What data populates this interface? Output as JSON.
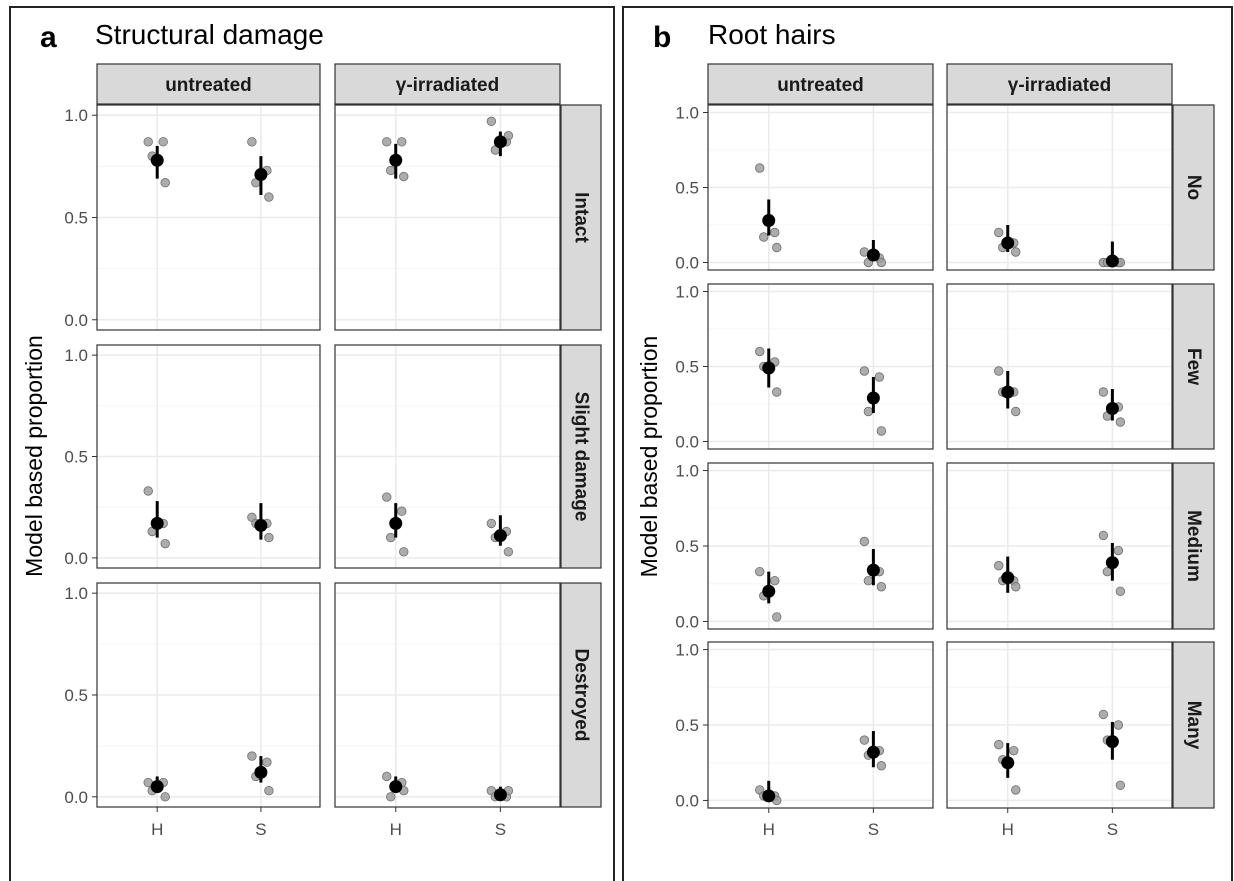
{
  "chart_data": [
    {
      "type": "scatter",
      "letter": "a",
      "title": "Structural damage",
      "ylabel": "Model based proportion",
      "columns": [
        "untreated",
        "γ-irradiated"
      ],
      "rows": [
        "Intact",
        "Slight damage",
        "Destroyed"
      ],
      "categories": [
        "H",
        "S"
      ],
      "ylim": [
        0,
        1
      ],
      "yticks": [
        "0.0",
        "0.5",
        "1.0"
      ],
      "grid": true,
      "cells": [
        {
          "row": "Intact",
          "col": "untreated",
          "H": {
            "mean": 0.78,
            "lo": 0.69,
            "hi": 0.85,
            "obs": [
              0.87,
              0.87,
              0.8,
              0.67
            ]
          },
          "S": {
            "mean": 0.71,
            "lo": 0.61,
            "hi": 0.8,
            "obs": [
              0.87,
              0.73,
              0.67,
              0.6
            ]
          }
        },
        {
          "row": "Intact",
          "col": "γ-irradiated",
          "H": {
            "mean": 0.78,
            "lo": 0.69,
            "hi": 0.86,
            "obs": [
              0.87,
              0.87,
              0.73,
              0.7
            ]
          },
          "S": {
            "mean": 0.87,
            "lo": 0.8,
            "hi": 0.92,
            "obs": [
              0.97,
              0.87,
              0.83,
              0.9
            ]
          }
        },
        {
          "row": "Slight damage",
          "col": "untreated",
          "H": {
            "mean": 0.17,
            "lo": 0.1,
            "hi": 0.28,
            "obs": [
              0.33,
              0.17,
              0.13,
              0.07
            ]
          },
          "S": {
            "mean": 0.16,
            "lo": 0.09,
            "hi": 0.27,
            "obs": [
              0.2,
              0.17,
              0.17,
              0.1
            ]
          }
        },
        {
          "row": "Slight damage",
          "col": "γ-irradiated",
          "H": {
            "mean": 0.17,
            "lo": 0.1,
            "hi": 0.27,
            "obs": [
              0.3,
              0.23,
              0.1,
              0.03
            ]
          },
          "S": {
            "mean": 0.11,
            "lo": 0.06,
            "hi": 0.21,
            "obs": [
              0.17,
              0.13,
              0.1,
              0.03
            ]
          }
        },
        {
          "row": "Destroyed",
          "col": "untreated",
          "H": {
            "mean": 0.05,
            "lo": 0.02,
            "hi": 0.1,
            "obs": [
              0.07,
              0.07,
              0.03,
              0.0
            ]
          },
          "S": {
            "mean": 0.12,
            "lo": 0.07,
            "hi": 0.2,
            "obs": [
              0.2,
              0.17,
              0.1,
              0.03
            ]
          }
        },
        {
          "row": "Destroyed",
          "col": "γ-irradiated",
          "H": {
            "mean": 0.05,
            "lo": 0.02,
            "hi": 0.1,
            "obs": [
              0.1,
              0.07,
              0.0,
              0.03
            ]
          },
          "S": {
            "mean": 0.01,
            "lo": 0.0,
            "hi": 0.05,
            "obs": [
              0.03,
              0.0,
              0.0,
              0.03
            ]
          }
        }
      ]
    },
    {
      "type": "scatter",
      "letter": "b",
      "title": "Root hairs",
      "ylabel": "Model based proportion",
      "columns": [
        "untreated",
        "γ-irradiated"
      ],
      "rows": [
        "No",
        "Few",
        "Medium",
        "Many"
      ],
      "categories": [
        "H",
        "S"
      ],
      "ylim": [
        0,
        1
      ],
      "yticks": [
        "0.0",
        "0.5",
        "1.0"
      ],
      "grid": true,
      "cells": [
        {
          "row": "No",
          "col": "untreated",
          "H": {
            "mean": 0.28,
            "lo": 0.18,
            "hi": 0.42,
            "obs": [
              0.63,
              0.2,
              0.17,
              0.1
            ]
          },
          "S": {
            "mean": 0.05,
            "lo": 0.02,
            "hi": 0.15,
            "obs": [
              0.07,
              0.03,
              0.0,
              0.0
            ]
          }
        },
        {
          "row": "No",
          "col": "γ-irradiated",
          "H": {
            "mean": 0.13,
            "lo": 0.07,
            "hi": 0.25,
            "obs": [
              0.2,
              0.13,
              0.1,
              0.07
            ]
          },
          "S": {
            "mean": 0.01,
            "lo": 0.0,
            "hi": 0.14,
            "obs": [
              0.0,
              0.0,
              0.0,
              0.0
            ]
          }
        },
        {
          "row": "Few",
          "col": "untreated",
          "H": {
            "mean": 0.49,
            "lo": 0.36,
            "hi": 0.62,
            "obs": [
              0.6,
              0.53,
              0.5,
              0.33
            ]
          },
          "S": {
            "mean": 0.29,
            "lo": 0.19,
            "hi": 0.43,
            "obs": [
              0.47,
              0.43,
              0.2,
              0.07
            ]
          }
        },
        {
          "row": "Few",
          "col": "γ-irradiated",
          "H": {
            "mean": 0.33,
            "lo": 0.22,
            "hi": 0.47,
            "obs": [
              0.47,
              0.33,
              0.33,
              0.2
            ]
          },
          "S": {
            "mean": 0.22,
            "lo": 0.14,
            "hi": 0.35,
            "obs": [
              0.33,
              0.23,
              0.17,
              0.13
            ]
          }
        },
        {
          "row": "Medium",
          "col": "untreated",
          "H": {
            "mean": 0.2,
            "lo": 0.12,
            "hi": 0.33,
            "obs": [
              0.33,
              0.27,
              0.17,
              0.03
            ]
          },
          "S": {
            "mean": 0.34,
            "lo": 0.24,
            "hi": 0.48,
            "obs": [
              0.53,
              0.33,
              0.27,
              0.23
            ]
          }
        },
        {
          "row": "Medium",
          "col": "γ-irradiated",
          "H": {
            "mean": 0.29,
            "lo": 0.19,
            "hi": 0.43,
            "obs": [
              0.37,
              0.27,
              0.27,
              0.23
            ]
          },
          "S": {
            "mean": 0.39,
            "lo": 0.27,
            "hi": 0.52,
            "obs": [
              0.57,
              0.47,
              0.33,
              0.2
            ]
          }
        },
        {
          "row": "Many",
          "col": "untreated",
          "H": {
            "mean": 0.03,
            "lo": 0.01,
            "hi": 0.13,
            "obs": [
              0.07,
              0.03,
              0.03,
              0.0
            ]
          },
          "S": {
            "mean": 0.32,
            "lo": 0.22,
            "hi": 0.46,
            "obs": [
              0.4,
              0.33,
              0.3,
              0.23
            ]
          }
        },
        {
          "row": "Many",
          "col": "γ-irradiated",
          "H": {
            "mean": 0.25,
            "lo": 0.15,
            "hi": 0.38,
            "obs": [
              0.37,
              0.33,
              0.27,
              0.07
            ]
          },
          "S": {
            "mean": 0.39,
            "lo": 0.27,
            "hi": 0.52,
            "obs": [
              0.57,
              0.5,
              0.4,
              0.1
            ]
          }
        }
      ]
    }
  ],
  "colors": {
    "strip_bg": "#d9d9d9",
    "strip_text": "#1a1a1a",
    "panel_border": "#333333",
    "grid_major": "#ebebeb",
    "grid_minor": "#f5f5f5",
    "point_obs": "#9e9e9e",
    "point_mean": "#000000",
    "tick_text": "#4d4d4d"
  }
}
